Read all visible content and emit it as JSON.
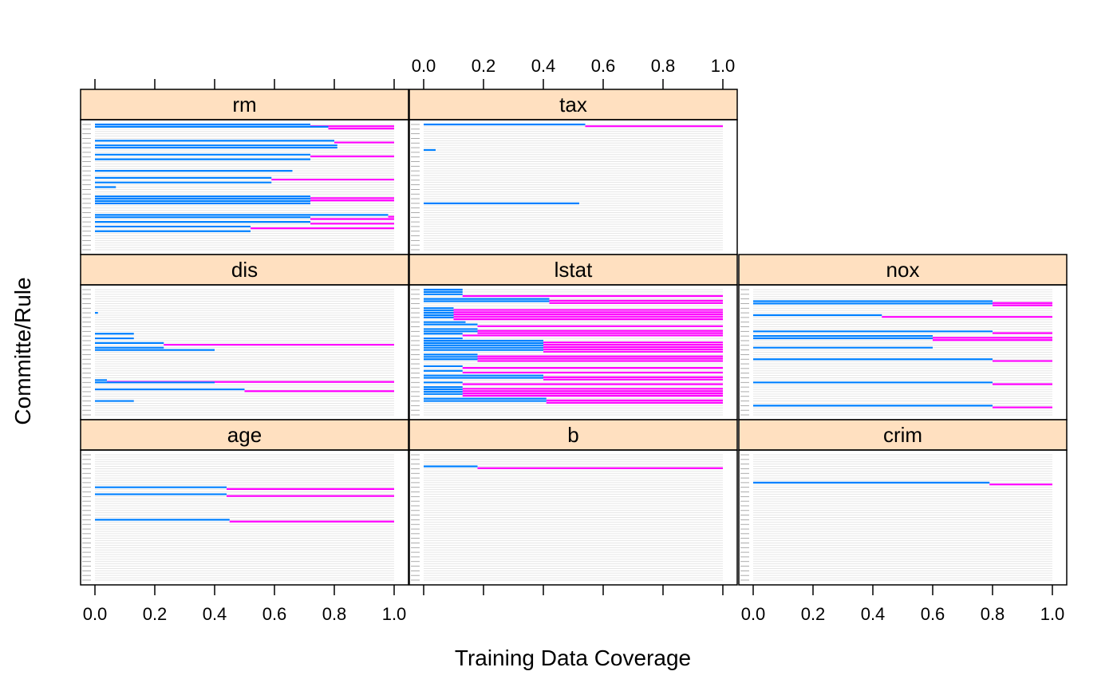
{
  "chart_data": {
    "type": "dotplot-segments",
    "xlabel": "Training Data Coverage",
    "ylabel": "Committe/Rule",
    "xlim": [
      0,
      1
    ],
    "x_ticks": [
      0.0,
      0.2,
      0.4,
      0.6,
      0.8,
      1.0
    ],
    "x_tick_labels": [
      "0.0",
      "0.2",
      "0.4",
      "0.6",
      "0.8",
      "1.0"
    ],
    "colors": {
      "strip": "#ffe0c0",
      "low_segment": "#0080ff",
      "high_segment": "#ff00ff",
      "grid": "#e6e6e6"
    },
    "rule_count": 55,
    "panels": [
      {
        "name": "rm",
        "row": 0,
        "col": 0,
        "segments": [
          {
            "rule": 1,
            "low": 0.72,
            "high": 1.0
          },
          {
            "rule": 2,
            "low": 0.78,
            "high": 1.0
          },
          {
            "rule": 8,
            "low": 0.8,
            "high": 1.0
          },
          {
            "rule": 10,
            "low": 0.81,
            "high": null
          },
          {
            "rule": 11,
            "low": 0.81,
            "high": null
          },
          {
            "rule": 14,
            "low": 0.72,
            "high": 1.0
          },
          {
            "rule": 16,
            "low": 0.72,
            "high": null
          },
          {
            "rule": 21,
            "low": 0.66,
            "high": null
          },
          {
            "rule": 24,
            "low": 0.59,
            "high": 1.0
          },
          {
            "rule": 26,
            "low": 0.59,
            "high": null
          },
          {
            "rule": 28,
            "low": 0.07,
            "high": null
          },
          {
            "rule": 32,
            "low": 0.72,
            "high": 1.0
          },
          {
            "rule": 33,
            "low": 0.72,
            "high": 1.0
          },
          {
            "rule": 34,
            "low": 0.72,
            "high": null
          },
          {
            "rule": 35,
            "low": 0.72,
            "high": null
          },
          {
            "rule": 40,
            "low": 0.98,
            "high": 1.0
          },
          {
            "rule": 41,
            "low": 0.72,
            "high": 1.0
          },
          {
            "rule": 43,
            "low": 0.72,
            "high": 1.0
          },
          {
            "rule": 45,
            "low": 0.52,
            "high": 1.0
          },
          {
            "rule": 47,
            "low": 0.52,
            "high": null
          }
        ]
      },
      {
        "name": "tax",
        "row": 0,
        "col": 1,
        "segments": [
          {
            "rule": 1,
            "low": 0.54,
            "high": 1.0
          },
          {
            "rule": 12,
            "low": 0.04,
            "high": null
          },
          {
            "rule": 35,
            "low": 0.52,
            "high": null
          }
        ]
      },
      {
        "name": "dis",
        "row": 1,
        "col": 0,
        "segments": [
          {
            "rule": 11,
            "low": 0.01,
            "high": null
          },
          {
            "rule": 20,
            "low": 0.13,
            "high": null
          },
          {
            "rule": 22,
            "low": 0.13,
            "high": null
          },
          {
            "rule": 24,
            "low": 0.23,
            "high": 1.0
          },
          {
            "rule": 26,
            "low": 0.23,
            "high": null
          },
          {
            "rule": 27,
            "low": 0.4,
            "high": null
          },
          {
            "rule": 40,
            "low": 0.04,
            "high": 1.0
          },
          {
            "rule": 41,
            "low": 0.4,
            "high": null
          },
          {
            "rule": 44,
            "low": 0.5,
            "high": 1.0
          },
          {
            "rule": 49,
            "low": 0.13,
            "high": null
          }
        ]
      },
      {
        "name": "lstat",
        "row": 1,
        "col": 1,
        "segments": [
          {
            "rule": 1,
            "low": 0.13,
            "high": null
          },
          {
            "rule": 2,
            "low": 0.13,
            "high": null
          },
          {
            "rule": 3,
            "low": 0.13,
            "high": 1.0
          },
          {
            "rule": 5,
            "low": 0.42,
            "high": 1.0
          },
          {
            "rule": 6,
            "low": 0.42,
            "high": 1.0
          },
          {
            "rule": 9,
            "low": 0.1,
            "high": 1.0
          },
          {
            "rule": 10,
            "low": 0.1,
            "high": 1.0
          },
          {
            "rule": 11,
            "low": 0.1,
            "high": 1.0
          },
          {
            "rule": 12,
            "low": 0.1,
            "high": 1.0
          },
          {
            "rule": 13,
            "low": 0.1,
            "high": 1.0
          },
          {
            "rule": 15,
            "low": 0.14,
            "high": null
          },
          {
            "rule": 16,
            "low": 0.18,
            "high": 1.0
          },
          {
            "rule": 18,
            "low": 0.18,
            "high": 1.0
          },
          {
            "rule": 19,
            "low": 0.18,
            "high": 1.0
          },
          {
            "rule": 20,
            "low": 0.13,
            "high": 1.0
          },
          {
            "rule": 22,
            "low": 0.13,
            "high": null
          },
          {
            "rule": 23,
            "low": 0.4,
            "high": 1.0
          },
          {
            "rule": 24,
            "low": 0.4,
            "high": 1.0
          },
          {
            "rule": 25,
            "low": 0.4,
            "high": 1.0
          },
          {
            "rule": 26,
            "low": 0.4,
            "high": 1.0
          },
          {
            "rule": 27,
            "low": 0.4,
            "high": 1.0
          },
          {
            "rule": 29,
            "low": 0.18,
            "high": 1.0
          },
          {
            "rule": 30,
            "low": 0.18,
            "high": 1.0
          },
          {
            "rule": 31,
            "low": 0.18,
            "high": 1.0
          },
          {
            "rule": 34,
            "low": 0.13,
            "high": 1.0
          },
          {
            "rule": 36,
            "low": 0.13,
            "high": 1.0
          },
          {
            "rule": 38,
            "low": 0.4,
            "high": 1.0
          },
          {
            "rule": 39,
            "low": 0.4,
            "high": 1.0
          },
          {
            "rule": 41,
            "low": 0.13,
            "high": 1.0
          },
          {
            "rule": 43,
            "low": 0.13,
            "high": 1.0
          },
          {
            "rule": 44,
            "low": 0.13,
            "high": 1.0
          },
          {
            "rule": 45,
            "low": 0.13,
            "high": 1.0
          },
          {
            "rule": 46,
            "low": 0.13,
            "high": 1.0
          },
          {
            "rule": 48,
            "low": 0.41,
            "high": 1.0
          },
          {
            "rule": 49,
            "low": 0.41,
            "high": 1.0
          }
        ]
      },
      {
        "name": "nox",
        "row": 1,
        "col": 2,
        "segments": [
          {
            "rule": 6,
            "low": 0.8,
            "high": 1.0
          },
          {
            "rule": 7,
            "low": 0.8,
            "high": 1.0
          },
          {
            "rule": 12,
            "low": 0.43,
            "high": 1.0
          },
          {
            "rule": 19,
            "low": 0.8,
            "high": 1.0
          },
          {
            "rule": 21,
            "low": 0.6,
            "high": 1.0
          },
          {
            "rule": 22,
            "low": 0.6,
            "high": 1.0
          },
          {
            "rule": 26,
            "low": 0.6,
            "high": null
          },
          {
            "rule": 31,
            "low": 0.8,
            "high": 1.0
          },
          {
            "rule": 41,
            "low": 0.8,
            "high": 1.0
          },
          {
            "rule": 51,
            "low": 0.8,
            "high": 1.0
          }
        ]
      },
      {
        "name": "age",
        "row": 2,
        "col": 0,
        "segments": [
          {
            "rule": 15,
            "low": 0.44,
            "high": 1.0
          },
          {
            "rule": 18,
            "low": 0.44,
            "high": 1.0
          },
          {
            "rule": 29,
            "low": 0.45,
            "high": 1.0
          }
        ]
      },
      {
        "name": "b",
        "row": 2,
        "col": 1,
        "segments": [
          {
            "rule": 6,
            "low": 0.18,
            "high": 1.0
          }
        ]
      },
      {
        "name": "crim",
        "row": 2,
        "col": 2,
        "segments": [
          {
            "rule": 13,
            "low": 0.79,
            "high": 1.0
          }
        ]
      }
    ]
  }
}
